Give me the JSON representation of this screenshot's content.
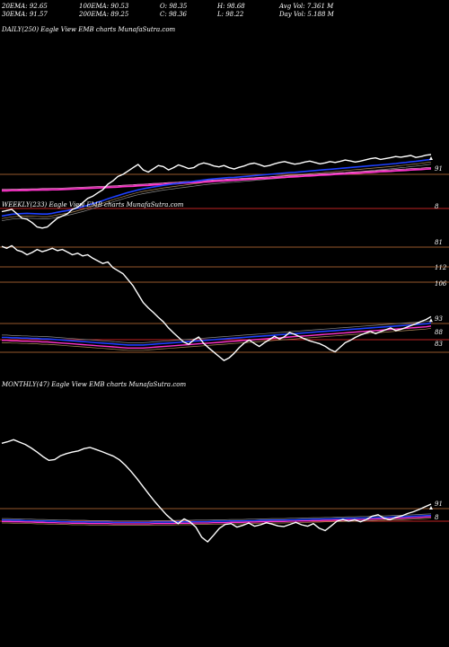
{
  "header": {
    "row1": [
      {
        "text": "20EMA: 92.65"
      },
      {
        "text": "100EMA: 90.53"
      },
      {
        "text": "O: 98.35"
      },
      {
        "text": "H: 98.68"
      },
      {
        "text": "Avg Vol: 7.361 M"
      }
    ],
    "row2": [
      {
        "text": "30EMA: 91.57"
      },
      {
        "text": "200EMA: 89.25"
      },
      {
        "text": "C: 98.36"
      },
      {
        "text": "L: 98.22"
      },
      {
        "text": "Day Vol: 5.188  M"
      }
    ]
  },
  "colors": {
    "background": "#000000",
    "price": "#ffffff",
    "ema_blue": "#1e40ff",
    "ema_magenta": "#ff33cc",
    "ema_pink": "#ff8ad8",
    "ema_grey": "#8a8a8a",
    "ema_tan": "#b08c5a",
    "level_line": "#c8743c",
    "level_line_red": "#ff3030"
  },
  "chart_data": [
    {
      "type": "line",
      "title": "DAILY(250) Eagle  View  EMB charts MunafaSutra.com",
      "price_labels": [
        "91",
        "8",
        "81"
      ],
      "series": [
        {
          "values": [
            68,
            68.5,
            69,
            67,
            65,
            64.5,
            63,
            61,
            60.5,
            61,
            63,
            65,
            66,
            67,
            69,
            70,
            72,
            74,
            75,
            76.5,
            78,
            80.5,
            82,
            84,
            85,
            86.5,
            88,
            89.5,
            87,
            86,
            87.5,
            89,
            88.5,
            87,
            88,
            89.3,
            88.5,
            87.6,
            88,
            89.5,
            90.2,
            89.6,
            88.8,
            88.4,
            89,
            88,
            87.4,
            88.2,
            88.8,
            89.7,
            90.1,
            89.4,
            88.6,
            89,
            89.8,
            90.4,
            90.8,
            90.2,
            89.6,
            90,
            90.6,
            91,
            90.4,
            89.8,
            90.2,
            90.8,
            90.4,
            90.9,
            91.5,
            91.1,
            90.6,
            91,
            91.6,
            92.1,
            92.5,
            91.8,
            92.2,
            92.6,
            93.1,
            92.8,
            93.2,
            93.6,
            92.7,
            93.1,
            93.7,
            94
          ]
        },
        {
          "values": [
            66,
            66.4,
            66.8,
            67,
            67.1,
            67.2,
            67.1,
            67,
            66.9,
            66.9,
            67.2,
            67.7,
            68.1,
            68.5,
            69,
            69.6,
            70.2,
            70.9,
            71.6,
            72.3,
            73,
            73.8,
            74.6,
            75.3,
            76,
            76.7,
            77.3,
            77.9,
            78.4,
            78.8,
            79.2,
            79.6,
            80,
            80.3,
            80.6,
            80.9,
            81.2,
            81.5,
            81.8,
            82.1,
            82.4,
            82.7,
            82.9,
            83.1,
            83.3,
            83.5,
            83.6,
            83.8,
            84,
            84.2,
            84.4,
            84.6,
            84.8,
            85,
            85.2,
            85.4,
            85.6,
            85.8,
            85.9,
            86.1,
            86.3,
            86.5,
            86.7,
            86.9,
            87.1,
            87.3,
            87.5,
            87.7,
            87.9,
            88.1,
            88.3,
            88.5,
            88.7,
            88.9,
            89.1,
            89.3,
            89.5,
            89.7,
            89.9,
            90.2,
            90.4,
            90.7,
            90.9,
            91.2,
            91.5,
            91.8
          ]
        },
        {
          "values": [
            77.5,
            77.5,
            77.6,
            77.6,
            77.7,
            77.7,
            77.8,
            77.8,
            77.9,
            77.9,
            78,
            78,
            78.1,
            78.2,
            78.3,
            78.4,
            78.5,
            78.6,
            78.7,
            78.8,
            78.9,
            79,
            79.1,
            79.2,
            79.4,
            79.5,
            79.6,
            79.8,
            79.9,
            80,
            80.2,
            80.3,
            80.4,
            80.6,
            80.7,
            80.8,
            81,
            81.1,
            81.2,
            81.4,
            81.5,
            81.6,
            81.8,
            81.9,
            82,
            82.2,
            82.3,
            82.4,
            82.6,
            82.7,
            82.8,
            83,
            83.1,
            83.2,
            83.4,
            83.5,
            83.6,
            83.8,
            83.9,
            84,
            84.2,
            84.3,
            84.4,
            84.6,
            84.7,
            84.8,
            85,
            85.1,
            85.2,
            85.4,
            85.5,
            85.6,
            85.8,
            85.9,
            86,
            86.2,
            86.3,
            86.4,
            86.6,
            86.7,
            86.8,
            87,
            87.1,
            87.2,
            87.4,
            87.5
          ]
        }
      ],
      "levels": [
        91,
        88,
        81
      ]
    },
    {
      "type": "line",
      "title": "WEEKLY(233) Eagle  View  EMB charts MunafaSutra.com",
      "price_labels": [
        "112",
        "106",
        "93",
        "88",
        "83"
      ],
      "series": [
        {
          "values": [
            112,
            111.5,
            112.2,
            111,
            110.6,
            109.8,
            110.4,
            111.2,
            110.6,
            111,
            111.5,
            110.9,
            111.2,
            110.5,
            109.8,
            110.2,
            109.5,
            109.8,
            108.9,
            108.2,
            107.5,
            107.9,
            106.4,
            105.6,
            104.8,
            103.2,
            101.6,
            99.4,
            97.2,
            95.8,
            94.6,
            93.3,
            92.1,
            90.5,
            89.2,
            88,
            86.8,
            86.2,
            87.3,
            88.1,
            86.4,
            85.2,
            84.1,
            83,
            81.9,
            82.6,
            83.8,
            85.3,
            86.5,
            87.3,
            86.4,
            85.6,
            86.6,
            87.4,
            88.3,
            87.6,
            88.2,
            89.3,
            88.8,
            88.2,
            87.6,
            87.1,
            86.7,
            86.3,
            85.7,
            84.8,
            84.2,
            85.4,
            86.6,
            87.2,
            88,
            88.6,
            89.1,
            89.6,
            89,
            89.5,
            90,
            90.5,
            89.8,
            90.1,
            90.6,
            91.1,
            91.6,
            92.2,
            92.7,
            93.5
          ]
        },
        {
          "values": [
            88,
            88,
            87.9,
            87.9,
            87.8,
            87.8,
            87.7,
            87.7,
            87.6,
            87.6,
            87.5,
            87.4,
            87.3,
            87.2,
            87.1,
            87,
            86.9,
            86.8,
            86.7,
            86.6,
            86.5,
            86.4,
            86.3,
            86.2,
            86.1,
            86,
            86,
            86,
            86,
            86.1,
            86.2,
            86.3,
            86.4,
            86.5,
            86.6,
            86.7,
            86.8,
            86.9,
            87,
            87.1,
            87.2,
            87.3,
            87.4,
            87.5,
            87.6,
            87.7,
            87.8,
            87.9,
            88,
            88.1,
            88.2,
            88.3,
            88.4,
            88.5,
            88.6,
            88.7,
            88.8,
            88.9,
            89,
            89.1,
            89.2,
            89.3,
            89.4,
            89.5,
            89.6,
            89.7,
            89.8,
            89.9,
            90,
            90.1,
            90.2,
            90.3,
            90.4,
            90.5,
            90.6,
            90.7,
            90.8,
            90.9,
            91,
            91.1,
            91.2,
            91.3,
            91.4,
            91.5,
            91.6,
            91.8
          ]
        }
      ],
      "levels": [
        112,
        106,
        93,
        88,
        83
      ]
    },
    {
      "type": "line",
      "title": "MONTHLY(47) Eagle  View  EMB charts MunafaSutra.com",
      "price_labels": [
        "91",
        "8"
      ],
      "series": [
        {
          "values": [
            112,
            112.5,
            113.2,
            112.4,
            111.6,
            110.4,
            109,
            107.5,
            106.2,
            106.5,
            107.8,
            108.5,
            109,
            109.4,
            110.2,
            110.6,
            109.9,
            109.2,
            108.4,
            107.6,
            106.4,
            104.6,
            102.4,
            100,
            97.4,
            94.8,
            92.3,
            90,
            87.8,
            86,
            84.8,
            86.4,
            85.4,
            83.6,
            80.2,
            78.6,
            80.8,
            83.2,
            84.5,
            84.8,
            83.6,
            84.2,
            85,
            83.9,
            84.4,
            85.1,
            84.6,
            84,
            83.8,
            84.5,
            85.2,
            84.4,
            83.9,
            84.8,
            83.2,
            82.4,
            84,
            85.6,
            86.2,
            85.6,
            86.1,
            85.4,
            86.2,
            87.3,
            87.8,
            86.6,
            86.1,
            86.9,
            87.4,
            88.2,
            88.8,
            89.6,
            90.5,
            91.4
          ]
        },
        {
          "values": [
            86,
            86,
            85.9,
            85.9,
            85.8,
            85.8,
            85.7,
            85.7,
            85.6,
            85.6,
            85.5,
            85.5,
            85.4,
            85.4,
            85.4,
            85.3,
            85.3,
            85.3,
            85.3,
            85.2,
            85.2,
            85.2,
            85.2,
            85.2,
            85.2,
            85.2,
            85.3,
            85.3,
            85.3,
            85.3,
            85.4,
            85.4,
            85.4,
            85.5,
            85.5,
            85.5,
            85.6,
            85.6,
            85.6,
            85.7,
            85.7,
            85.7,
            85.8,
            85.8,
            85.9,
            85.9,
            86,
            86,
            86,
            86.1,
            86.1,
            86.2,
            86.2,
            86.3,
            86.3,
            86.4,
            86.4,
            86.5,
            86.5,
            86.6,
            86.6,
            86.7,
            86.7,
            86.8,
            86.9,
            86.9,
            87,
            87.1,
            87.1,
            87.2,
            87.3,
            87.4,
            87.5,
            87.6
          ]
        }
      ],
      "levels": [
        91,
        88
      ]
    }
  ]
}
